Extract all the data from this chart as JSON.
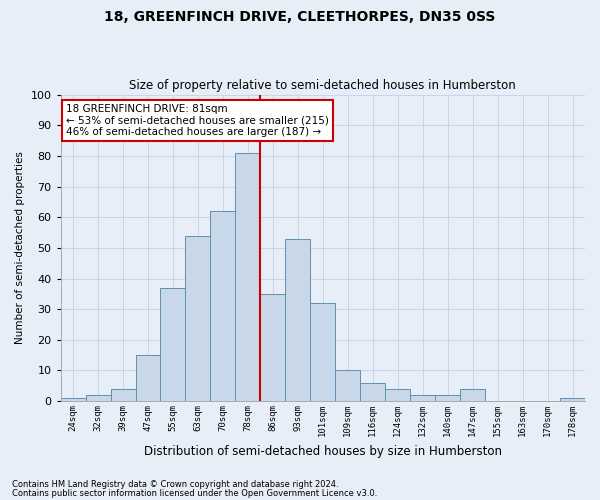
{
  "title1": "18, GREENFINCH DRIVE, CLEETHORPES, DN35 0SS",
  "title2": "Size of property relative to semi-detached houses in Humberston",
  "xlabel": "Distribution of semi-detached houses by size in Humberston",
  "ylabel": "Number of semi-detached properties",
  "footnote1": "Contains HM Land Registry data © Crown copyright and database right 2024.",
  "footnote2": "Contains public sector information licensed under the Open Government Licence v3.0.",
  "bar_labels": [
    "24sqm",
    "32sqm",
    "39sqm",
    "47sqm",
    "55sqm",
    "63sqm",
    "70sqm",
    "78sqm",
    "86sqm",
    "93sqm",
    "101sqm",
    "109sqm",
    "116sqm",
    "124sqm",
    "132sqm",
    "140sqm",
    "147sqm",
    "155sqm",
    "163sqm",
    "170sqm",
    "178sqm"
  ],
  "bar_values": [
    1,
    2,
    4,
    15,
    37,
    54,
    62,
    81,
    35,
    53,
    32,
    10,
    6,
    4,
    2,
    2,
    4,
    0,
    0,
    0,
    1
  ],
  "bar_color": "#c8d8e8",
  "bar_edge_color": "#6090b0",
  "vline_index": 7,
  "vline_color": "#cc0000",
  "annotation_text": "18 GREENFINCH DRIVE: 81sqm\n← 53% of semi-detached houses are smaller (215)\n46% of semi-detached houses are larger (187) →",
  "annotation_box_color": "#ffffff",
  "annotation_box_edge": "#cc0000",
  "ylim": [
    0,
    100
  ],
  "yticks": [
    0,
    10,
    20,
    30,
    40,
    50,
    60,
    70,
    80,
    90,
    100
  ],
  "grid_color": "#c8d4e8",
  "background_color": "#e8eef8",
  "title1_fontsize": 10,
  "title2_fontsize": 8.5,
  "xlabel_fontsize": 8.5,
  "ylabel_fontsize": 7.5,
  "xtick_fontsize": 6.5,
  "ytick_fontsize": 8,
  "annot_fontsize": 7.5,
  "footnote_fontsize": 6
}
